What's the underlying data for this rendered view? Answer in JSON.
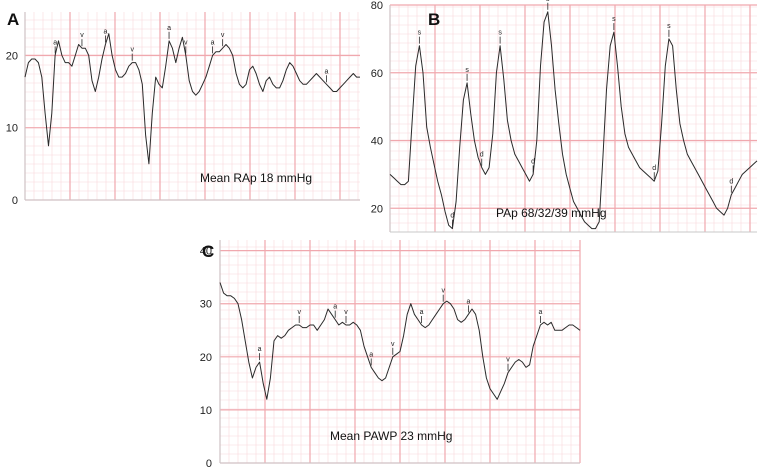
{
  "chart_data": [
    {
      "type": "line",
      "panel": "A",
      "caption": "Mean RAp  18 mmHg",
      "ylim": [
        0,
        26
      ],
      "yticks": [
        0,
        10,
        20
      ],
      "grid": true,
      "x": [
        0,
        1,
        2,
        3,
        4,
        5,
        6,
        7,
        8,
        9,
        10,
        11,
        12,
        13,
        14,
        15,
        16,
        17,
        18,
        19,
        20,
        21,
        22,
        23,
        24,
        25,
        26,
        27,
        28,
        29,
        30,
        31,
        32,
        33,
        34,
        35,
        36,
        37,
        38,
        39,
        40,
        41,
        42,
        43,
        44,
        45,
        46,
        47,
        48,
        49,
        50,
        51,
        52,
        53,
        54,
        55,
        56,
        57,
        58,
        59,
        60,
        61,
        62,
        63,
        64,
        65,
        66,
        67,
        68,
        69,
        70,
        71,
        72,
        73,
        74,
        75,
        76,
        77,
        78,
        79,
        80,
        81,
        82,
        83,
        84,
        85,
        86,
        87,
        88,
        89,
        90,
        91,
        92,
        93,
        94,
        95,
        96,
        97,
        98,
        99,
        100
      ],
      "series": [
        {
          "values": [
            17,
            19,
            19.5,
            19.5,
            19,
            17,
            12,
            7.5,
            12,
            20,
            22,
            20,
            19,
            19,
            18.5,
            20,
            21.5,
            21,
            21,
            20,
            16.5,
            15,
            17,
            19.5,
            21.5,
            23,
            20,
            18,
            17,
            17,
            17.5,
            18.5,
            19,
            19,
            18,
            16,
            9,
            5,
            12,
            17,
            16,
            15.5,
            18.5,
            22,
            21,
            19,
            21,
            22.5,
            20,
            16.5,
            15,
            14.5,
            15,
            16,
            17,
            18.5,
            20,
            20.5,
            20.5,
            21,
            21.5,
            21,
            20,
            17.5,
            16,
            15.5,
            16,
            18,
            18.5,
            17.5,
            16,
            15,
            16.5,
            17,
            16,
            15.5,
            15.5,
            16.5,
            18,
            19,
            18.5,
            17.5,
            16.5,
            16,
            16,
            16.5,
            17,
            17.5,
            17,
            16.5,
            16,
            15.5,
            15,
            15,
            15.5,
            16,
            16.5,
            17,
            17.5,
            17,
            17
          ]
        }
      ],
      "markers": [
        {
          "label": "a",
          "x": 9
        },
        {
          "label": "v",
          "x": 17
        },
        {
          "label": "a",
          "x": 24
        },
        {
          "label": "v",
          "x": 32
        },
        {
          "label": "a",
          "x": 43
        },
        {
          "label": "v",
          "x": 48
        },
        {
          "label": "a",
          "x": 56
        },
        {
          "label": "v",
          "x": 59
        },
        {
          "label": "a",
          "x": 90
        }
      ]
    },
    {
      "type": "line",
      "panel": "B",
      "caption": "PAp  68/32/39 mmHg",
      "ylim": [
        13,
        80
      ],
      "yticks": [
        20,
        40,
        60,
        80
      ],
      "grid": true,
      "x": [
        0,
        1,
        2,
        3,
        4,
        5,
        6,
        7,
        8,
        9,
        10,
        11,
        12,
        13,
        14,
        15,
        16,
        17,
        18,
        19,
        20,
        21,
        22,
        23,
        24,
        25,
        26,
        27,
        28,
        29,
        30,
        31,
        32,
        33,
        34,
        35,
        36,
        37,
        38,
        39,
        40,
        41,
        42,
        43,
        44,
        45,
        46,
        47,
        48,
        49,
        50,
        51,
        52,
        53,
        54,
        55,
        56,
        57,
        58,
        59,
        60,
        61,
        62,
        63,
        64,
        65,
        66,
        67,
        68,
        69,
        70,
        71,
        72,
        73,
        74,
        75,
        76,
        77,
        78,
        79,
        80,
        81,
        82,
        83,
        84,
        85,
        86,
        87,
        88,
        89,
        90,
        91,
        92,
        93,
        94,
        95,
        96,
        97,
        98,
        99,
        100
      ],
      "series": [
        {
          "values": [
            30,
            29,
            28,
            27,
            27,
            28,
            45,
            62,
            68,
            60,
            44,
            38,
            33,
            28,
            24,
            19,
            15,
            14,
            22,
            38,
            52,
            57,
            48,
            40,
            35,
            32,
            30,
            32,
            42,
            60,
            68,
            58,
            46,
            40,
            36,
            34,
            32,
            30,
            28,
            30,
            40,
            62,
            75,
            78,
            68,
            55,
            45,
            36,
            30,
            26,
            22,
            20,
            18,
            16,
            15,
            14,
            14,
            16,
            35,
            55,
            68,
            72,
            62,
            50,
            42,
            38,
            36,
            34,
            32,
            31,
            30,
            29,
            28,
            31,
            45,
            62,
            70,
            68,
            55,
            45,
            40,
            36,
            34,
            32,
            30,
            28,
            26,
            24,
            22,
            20,
            19,
            18,
            20,
            24,
            26,
            28,
            30,
            31,
            32,
            33,
            34
          ]
        }
      ],
      "markers": [
        {
          "label": "s",
          "x": 8
        },
        {
          "label": "d",
          "x": 17
        },
        {
          "label": "s",
          "x": 21
        },
        {
          "label": "d",
          "x": 25
        },
        {
          "label": "s",
          "x": 30
        },
        {
          "label": "d",
          "x": 39
        },
        {
          "label": "s",
          "x": 43
        },
        {
          "label": "s",
          "x": 61
        },
        {
          "label": "d",
          "x": 72
        },
        {
          "label": "s",
          "x": 76
        },
        {
          "label": "d",
          "x": 93
        }
      ]
    },
    {
      "type": "line",
      "panel": "C",
      "caption": "Mean PAWP 23 mmHg",
      "ylim": [
        0,
        42
      ],
      "yticks": [
        0,
        10,
        20,
        30,
        40
      ],
      "grid": true,
      "x": [
        0,
        1,
        2,
        3,
        4,
        5,
        6,
        7,
        8,
        9,
        10,
        11,
        12,
        13,
        14,
        15,
        16,
        17,
        18,
        19,
        20,
        21,
        22,
        23,
        24,
        25,
        26,
        27,
        28,
        29,
        30,
        31,
        32,
        33,
        34,
        35,
        36,
        37,
        38,
        39,
        40,
        41,
        42,
        43,
        44,
        45,
        46,
        47,
        48,
        49,
        50,
        51,
        52,
        53,
        54,
        55,
        56,
        57,
        58,
        59,
        60,
        61,
        62,
        63,
        64,
        65,
        66,
        67,
        68,
        69,
        70,
        71,
        72,
        73,
        74,
        75,
        76,
        77,
        78,
        79,
        80,
        81,
        82,
        83,
        84,
        85,
        86,
        87,
        88,
        89,
        90,
        91,
        92,
        93,
        94,
        95,
        96,
        97,
        98,
        99,
        100
      ],
      "series": [
        {
          "values": [
            34,
            32,
            31.5,
            31.5,
            31,
            30,
            27,
            23,
            19,
            16,
            18,
            19,
            15,
            12,
            16,
            23,
            24,
            23.5,
            24,
            25,
            25.5,
            26,
            26,
            25.5,
            25.5,
            26,
            26,
            25,
            26,
            27,
            29,
            28,
            27,
            26,
            26.5,
            26,
            26,
            26.5,
            26,
            25,
            22,
            20,
            18,
            17,
            16,
            15.5,
            16,
            18,
            20,
            20.5,
            21,
            24,
            28,
            30,
            28,
            27,
            26,
            25.5,
            26,
            27,
            28,
            29,
            30,
            30.5,
            30,
            29,
            27,
            26.5,
            27,
            28,
            29,
            28,
            25,
            20,
            16,
            14,
            13,
            12,
            13.5,
            15,
            17,
            18,
            19,
            19.5,
            19,
            18,
            18.5,
            22,
            24,
            26,
            26.5,
            26,
            26.5,
            25,
            25,
            25,
            25.5,
            26,
            26,
            25.5,
            25
          ]
        }
      ],
      "markers": [
        {
          "label": "a",
          "x": 11
        },
        {
          "label": "v",
          "x": 22
        },
        {
          "label": "a",
          "x": 32
        },
        {
          "label": "v",
          "x": 35
        },
        {
          "label": "a",
          "x": 42
        },
        {
          "label": "v",
          "x": 48
        },
        {
          "label": "a",
          "x": 56
        },
        {
          "label": "v",
          "x": 62
        },
        {
          "label": "a",
          "x": 69
        },
        {
          "label": "v",
          "x": 80
        },
        {
          "label": "a",
          "x": 89
        }
      ]
    }
  ],
  "colors": {
    "grid_major": "#f0a8ae",
    "grid_minor": "#f8d8dc",
    "trace": "#2a2a2a",
    "axis": "#c8c8c8"
  }
}
